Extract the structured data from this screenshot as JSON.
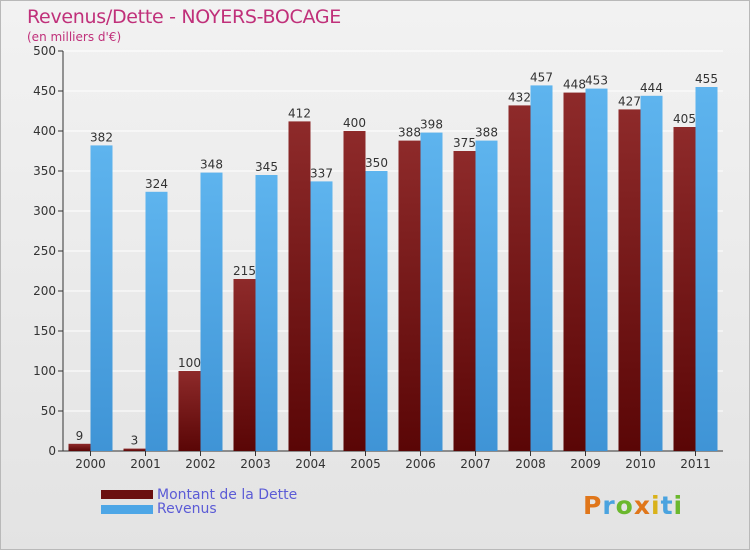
{
  "title": "Revenus/Dette - NOYERS-BOCAGE",
  "subtitle": "(en milliers d'€)",
  "chart_data": {
    "type": "bar",
    "title": "Revenus/Dette - NOYERS-BOCAGE",
    "subtitle": "(en milliers d'€)",
    "categories": [
      "2000",
      "2001",
      "2002",
      "2003",
      "2004",
      "2005",
      "2006",
      "2007",
      "2008",
      "2009",
      "2010",
      "2011"
    ],
    "series": [
      {
        "name": "Montant de la Dette",
        "color": "#7a1818",
        "values": [
          9,
          3,
          100,
          215,
          412,
          400,
          388,
          375,
          432,
          448,
          427,
          405
        ]
      },
      {
        "name": "Revenus",
        "color": "#4da6e6",
        "values": [
          382,
          324,
          348,
          345,
          337,
          350,
          398,
          388,
          457,
          453,
          444,
          455
        ]
      }
    ],
    "ylim": [
      0,
      500
    ],
    "yticks": [
      0,
      50,
      100,
      150,
      200,
      250,
      300,
      350,
      400,
      450,
      500
    ],
    "grid": true,
    "data_labels": true,
    "legend": "bottom-left"
  },
  "legend": {
    "items": [
      {
        "label": "Montant de la Dette",
        "color": "#6b1010"
      },
      {
        "label": "Revenus",
        "color": "#4da6e6"
      }
    ]
  },
  "logo": {
    "text": "Proxiti"
  }
}
